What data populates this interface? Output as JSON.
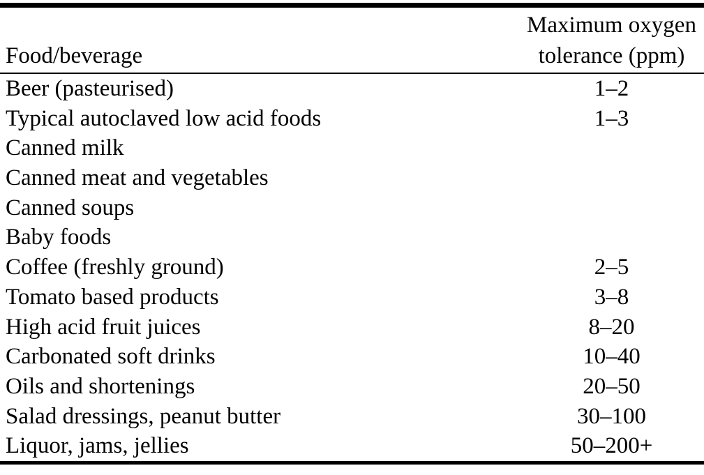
{
  "page": {
    "background": "#ffffff",
    "text_color": "#000000",
    "rule_color": "#000000"
  },
  "table": {
    "headers": {
      "food": "Food/beverage",
      "tolerance_line1": "Maximum oxygen",
      "tolerance_line2": "tolerance (ppm)"
    },
    "rows": [
      {
        "food": "Beer (pasteurised)",
        "tolerance": "1–2"
      },
      {
        "food": "Typical autoclaved low acid foods",
        "tolerance": "1–3"
      },
      {
        "food": "Canned milk",
        "tolerance": ""
      },
      {
        "food": "Canned meat and vegetables",
        "tolerance": ""
      },
      {
        "food": "Canned soups",
        "tolerance": ""
      },
      {
        "food": "Baby foods",
        "tolerance": ""
      },
      {
        "food": "Coffee (freshly ground)",
        "tolerance": "2–5"
      },
      {
        "food": "Tomato based products",
        "tolerance": "3–8"
      },
      {
        "food": "High acid fruit juices",
        "tolerance": "8–20"
      },
      {
        "food": "Carbonated soft drinks",
        "tolerance": "10–40"
      },
      {
        "food": "Oils and shortenings",
        "tolerance": "20–50"
      },
      {
        "food": "Salad dressings, peanut butter",
        "tolerance": "30–100"
      },
      {
        "food": "Liquor, jams, jellies",
        "tolerance": "50–200+"
      }
    ]
  }
}
